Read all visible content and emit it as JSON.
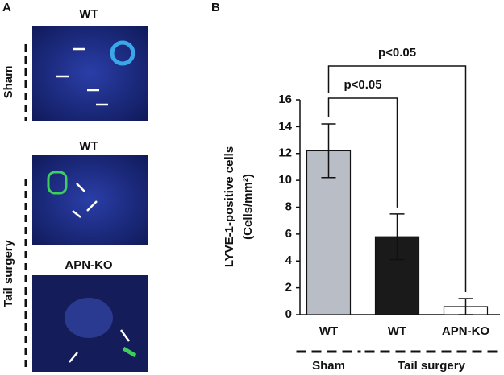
{
  "panel_a": {
    "label": "A",
    "images": [
      {
        "title": "WT"
      },
      {
        "title": "WT"
      },
      {
        "title": "APN-KO"
      }
    ],
    "groups": [
      "Sham",
      "Tail surgery"
    ]
  },
  "chart_data": {
    "type": "bar",
    "panel_label": "B",
    "ylabel": [
      "LYVE-1-positive cells",
      "(Cells/mm²)"
    ],
    "categories": [
      "WT",
      "WT",
      "APN-KO"
    ],
    "values": [
      12.2,
      5.8,
      0.6
    ],
    "errors": [
      2.0,
      1.7,
      0.6
    ],
    "colors": [
      "#b9bdc6",
      "#1a1a1a",
      "#ffffff"
    ],
    "groups": [
      {
        "name": "Sham",
        "categories": [
          0
        ]
      },
      {
        "name": "Tail surgery",
        "categories": [
          1,
          2
        ]
      }
    ],
    "annotations": [
      {
        "text": "p<0.05",
        "from": 0,
        "to": 1
      },
      {
        "text": "p<0.05",
        "from": 0,
        "to": 2
      }
    ],
    "ylim": [
      0,
      16
    ],
    "yticks": [
      0,
      2,
      4,
      6,
      8,
      10,
      12,
      14,
      16
    ],
    "grid": false
  }
}
